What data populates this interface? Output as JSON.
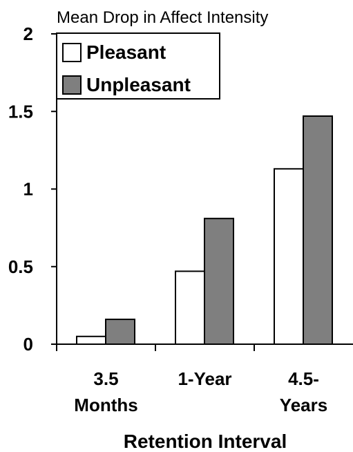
{
  "chart_data": {
    "type": "bar",
    "title": "Mean Drop in Affect Intensity",
    "xlabel": "Retention Interval",
    "ylabel": "",
    "categories": [
      [
        "3.5",
        "Months"
      ],
      [
        "1-Year"
      ],
      [
        "4.5-",
        "Years"
      ]
    ],
    "series": [
      {
        "name": "Pleasant",
        "values": [
          0.05,
          0.47,
          1.13
        ],
        "color": "#ffffff"
      },
      {
        "name": "Unpleasant",
        "values": [
          0.16,
          0.81,
          1.47
        ],
        "color": "#7f7f7f"
      }
    ],
    "ylim": [
      0,
      2
    ],
    "yticks": [
      "0",
      "0.5",
      "1",
      "1.5",
      "2"
    ],
    "legend": "top-left",
    "grid": false
  }
}
